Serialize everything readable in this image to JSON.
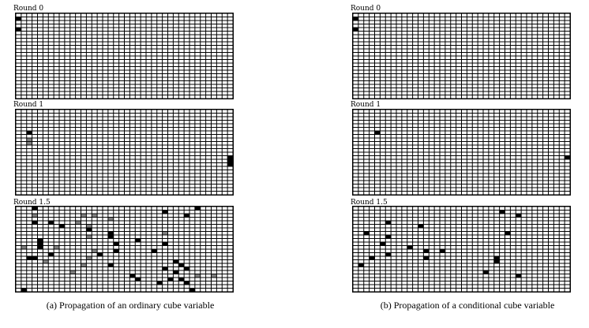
{
  "panels": [
    {
      "id": "a",
      "caption": "(a) Propagation of an ordinary cube variable",
      "rounds": [
        {
          "label": "Round 0",
          "cells": [
            [
              1,
              0
            ],
            [
              4,
              0
            ]
          ],
          "gray": []
        },
        {
          "label": "Round 1",
          "cells": [
            [
              6,
              2
            ],
            [
              13,
              39
            ],
            [
              14,
              39
            ],
            [
              15,
              39
            ]
          ],
          "gray": [
            [
              8,
              2
            ],
            [
              9,
              2
            ]
          ]
        },
        {
          "label": "Round 1.5",
          "cells": [
            [
              0,
              3
            ],
            [
              0,
              33
            ],
            [
              1,
              27
            ],
            [
              2,
              31
            ],
            [
              4,
              3
            ],
            [
              4,
              6
            ],
            [
              5,
              8
            ],
            [
              6,
              13
            ],
            [
              7,
              17
            ],
            [
              8,
              17
            ],
            [
              9,
              4
            ],
            [
              10,
              4
            ],
            [
              9,
              22
            ],
            [
              10,
              18
            ],
            [
              10,
              27
            ],
            [
              11,
              4
            ],
            [
              12,
              18
            ],
            [
              12,
              25
            ],
            [
              13,
              15
            ],
            [
              13,
              6
            ],
            [
              14,
              2
            ],
            [
              14,
              3
            ],
            [
              15,
              29
            ],
            [
              16,
              17
            ],
            [
              16,
              30
            ],
            [
              17,
              27
            ],
            [
              17,
              31
            ],
            [
              18,
              29
            ],
            [
              19,
              21
            ],
            [
              20,
              22
            ],
            [
              20,
              28
            ],
            [
              20,
              30
            ],
            [
              21,
              26
            ],
            [
              21,
              31
            ],
            [
              23,
              1
            ],
            [
              23,
              32
            ]
          ],
          "gray": [
            [
              2,
              3
            ],
            [
              2,
              12
            ],
            [
              2,
              14
            ],
            [
              3,
              17
            ],
            [
              4,
              11
            ],
            [
              5,
              13
            ],
            [
              7,
              27
            ],
            [
              8,
              13
            ],
            [
              11,
              1
            ],
            [
              11,
              7
            ],
            [
              12,
              14
            ],
            [
              14,
              13
            ],
            [
              15,
              5
            ],
            [
              16,
              12
            ],
            [
              18,
              10
            ],
            [
              19,
              33
            ],
            [
              19,
              36
            ]
          ]
        }
      ]
    },
    {
      "id": "b",
      "caption": "(b) Propagation of a conditional cube variable",
      "rounds": [
        {
          "label": "Round 0",
          "cells": [
            [
              1,
              0
            ],
            [
              4,
              0
            ]
          ],
          "gray": []
        },
        {
          "label": "Round 1",
          "cells": [
            [
              6,
              4
            ],
            [
              13,
              39
            ]
          ],
          "gray": []
        },
        {
          "label": "Round 1.5",
          "cells": [
            [
              1,
              27
            ],
            [
              2,
              30
            ],
            [
              4,
              6
            ],
            [
              5,
              12
            ],
            [
              7,
              2
            ],
            [
              7,
              28
            ],
            [
              8,
              6
            ],
            [
              10,
              5
            ],
            [
              11,
              10
            ],
            [
              12,
              13
            ],
            [
              12,
              16
            ],
            [
              13,
              6
            ],
            [
              14,
              3
            ],
            [
              14,
              13
            ],
            [
              14,
              26
            ],
            [
              15,
              26
            ],
            [
              16,
              1
            ],
            [
              18,
              24
            ],
            [
              19,
              30
            ]
          ],
          "gray": []
        }
      ]
    }
  ],
  "grid": {
    "rows": 24,
    "cols": 40
  },
  "colors": {
    "cell": "#ffffff",
    "line": "#000000",
    "filled": "#000000",
    "gray": "#808080"
  }
}
